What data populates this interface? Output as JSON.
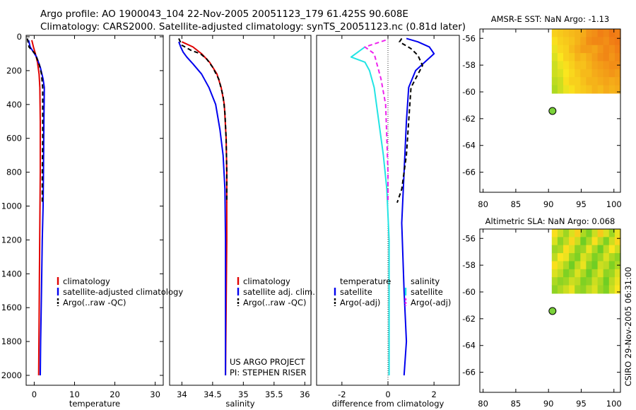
{
  "header": {
    "line1": "Argo profile: AO 1900043_104 22-Nov-2005 20051123_179 61.425S 90.608E",
    "line2": "Climatology: CARS2000. Satellite-adjusted climatology: synTS_20051123.nc (0.81d later)"
  },
  "side_label": "CSIRO 29-Nov-2005 06:31:00",
  "colors": {
    "red": "#e00000",
    "blue": "#0000ee",
    "cyan": "#22e4e4",
    "magenta": "#ee22ee",
    "black": "#000000"
  },
  "chart_data": [
    {
      "type": "line",
      "id": "temperature",
      "xlabel": "temperature",
      "ylabel": "",
      "xlim": [
        -2,
        32
      ],
      "ylim": [
        2050,
        0
      ],
      "xticks": [
        0,
        10,
        20,
        30
      ],
      "yticks": [
        0,
        200,
        400,
        600,
        800,
        1000,
        1200,
        1400,
        1600,
        1800,
        2000
      ],
      "legend": [
        "climatology",
        "satellite-adjusted climatology",
        "Argo(..raw -QC)"
      ],
      "legend_position": "lower-center",
      "series": [
        {
          "name": "climatology",
          "color": "red",
          "dash": false,
          "points": [
            [
              -0.6,
              20
            ],
            [
              -0.2,
              60
            ],
            [
              0.3,
              100
            ],
            [
              0.8,
              150
            ],
            [
              1.2,
              220
            ],
            [
              1.4,
              300
            ],
            [
              1.5,
              500
            ],
            [
              1.5,
              800
            ],
            [
              1.4,
              1100
            ],
            [
              1.3,
              1400
            ],
            [
              1.2,
              1700
            ],
            [
              1.1,
              2000
            ]
          ]
        },
        {
          "name": "satellite-adjusted climatology",
          "color": "blue",
          "dash": false,
          "points": [
            [
              -1.4,
              20
            ],
            [
              -1.0,
              60
            ],
            [
              0.6,
              120
            ],
            [
              1.5,
              180
            ],
            [
              2.2,
              250
            ],
            [
              2.5,
              300
            ],
            [
              2.4,
              500
            ],
            [
              2.3,
              800
            ],
            [
              2.2,
              1000
            ],
            [
              2.0,
              1200
            ],
            [
              1.8,
              1500
            ],
            [
              1.6,
              1800
            ],
            [
              1.5,
              2000
            ]
          ]
        },
        {
          "name": "Argo(..raw -QC)",
          "color": "black",
          "dash": true,
          "points": [
            [
              -1.7,
              10
            ],
            [
              -1.3,
              60
            ],
            [
              0.2,
              100
            ],
            [
              1.2,
              160
            ],
            [
              1.8,
              220
            ],
            [
              2.1,
              300
            ],
            [
              2.1,
              450
            ],
            [
              2.1,
              600
            ],
            [
              2.0,
              800
            ],
            [
              2.0,
              980
            ]
          ]
        }
      ]
    },
    {
      "type": "line",
      "id": "salinity",
      "xlabel": "salinity",
      "ylabel": "",
      "xlim": [
        33.8,
        36.1
      ],
      "ylim": [
        2050,
        0
      ],
      "xticks": [
        34,
        34.5,
        35,
        35.5,
        36
      ],
      "yticks": [],
      "legend": [
        "climatology",
        "satellite adj. clim.",
        "Argo(..raw -QC)"
      ],
      "legend_position": "lower-center",
      "annotations": [
        "US ARGO PROJECT",
        "PI: STEPHEN RISER"
      ],
      "series": [
        {
          "name": "climatology",
          "color": "red",
          "dash": false,
          "points": [
            [
              34.0,
              30
            ],
            [
              34.18,
              60
            ],
            [
              34.32,
              100
            ],
            [
              34.45,
              150
            ],
            [
              34.57,
              220
            ],
            [
              34.64,
              300
            ],
            [
              34.69,
              400
            ],
            [
              34.72,
              600
            ],
            [
              34.73,
              800
            ],
            [
              34.73,
              1200
            ],
            [
              34.72,
              1600
            ],
            [
              34.71,
              2000
            ]
          ]
        },
        {
          "name": "satellite adj. clim.",
          "color": "blue",
          "dash": false,
          "points": [
            [
              33.95,
              30
            ],
            [
              33.98,
              60
            ],
            [
              34.02,
              90
            ],
            [
              34.08,
              120
            ],
            [
              34.18,
              160
            ],
            [
              34.32,
              220
            ],
            [
              34.44,
              300
            ],
            [
              34.55,
              400
            ],
            [
              34.62,
              550
            ],
            [
              34.67,
              700
            ],
            [
              34.7,
              900
            ],
            [
              34.71,
              1200
            ],
            [
              34.71,
              1600
            ],
            [
              34.71,
              2000
            ]
          ]
        },
        {
          "name": "Argo(..raw -QC)",
          "color": "black",
          "dash": true,
          "points": [
            [
              33.95,
              10
            ],
            [
              34.0,
              50
            ],
            [
              34.15,
              80
            ],
            [
              34.3,
              100
            ],
            [
              34.4,
              130
            ],
            [
              34.5,
              180
            ],
            [
              34.6,
              250
            ],
            [
              34.67,
              350
            ],
            [
              34.7,
              450
            ],
            [
              34.72,
              600
            ],
            [
              34.73,
              800
            ],
            [
              34.73,
              980
            ]
          ]
        }
      ]
    },
    {
      "type": "line",
      "id": "difference",
      "xlabel": "difference from climatology",
      "ylabel": "",
      "xlim": [
        -3.1,
        3.1
      ],
      "ylim": [
        2050,
        0
      ],
      "xticks": [
        -2,
        0,
        2
      ],
      "yticks": [],
      "legend_headers": [
        "temperature",
        "salinity"
      ],
      "legend": [
        "satellite",
        "Argo(-adj)",
        "satellite",
        "Argo(-adj)"
      ],
      "legend_position": "lower-center",
      "series": [
        {
          "name": "temperature satellite",
          "color": "blue",
          "dash": false,
          "points": [
            [
              0.8,
              10
            ],
            [
              1.3,
              30
            ],
            [
              1.8,
              60
            ],
            [
              2.0,
              100
            ],
            [
              1.6,
              150
            ],
            [
              1.2,
              200
            ],
            [
              0.9,
              300
            ],
            [
              0.8,
              500
            ],
            [
              0.7,
              800
            ],
            [
              0.6,
              1100
            ],
            [
              0.7,
              1500
            ],
            [
              0.8,
              1800
            ],
            [
              0.7,
              2000
            ]
          ]
        },
        {
          "name": "temperature Argo(-adj)",
          "color": "black",
          "dash": true,
          "points": [
            [
              0.6,
              10
            ],
            [
              0.5,
              30
            ],
            [
              1.0,
              70
            ],
            [
              1.3,
              110
            ],
            [
              1.5,
              170
            ],
            [
              1.0,
              300
            ],
            [
              0.9,
              500
            ],
            [
              0.8,
              700
            ],
            [
              0.6,
              900
            ],
            [
              0.4,
              980
            ]
          ]
        },
        {
          "name": "salinity satellite",
          "color": "cyan",
          "dash": false,
          "points": [
            [
              -1.0,
              60
            ],
            [
              -1.6,
              120
            ],
            [
              -1.0,
              150
            ],
            [
              -0.8,
              200
            ],
            [
              -0.6,
              300
            ],
            [
              -0.4,
              500
            ],
            [
              -0.2,
              700
            ],
            [
              -0.05,
              900
            ],
            [
              0.05,
              1200
            ],
            [
              0.05,
              1600
            ],
            [
              0.05,
              2000
            ]
          ]
        },
        {
          "name": "salinity Argo(-adj)",
          "color": "magenta",
          "dash": true,
          "points": [
            [
              -0.1,
              20
            ],
            [
              -1.0,
              60
            ],
            [
              -0.6,
              100
            ],
            [
              -0.5,
              150
            ],
            [
              -0.3,
              250
            ],
            [
              -0.1,
              400
            ],
            [
              -0.05,
              600
            ],
            [
              0.0,
              800
            ],
            [
              0.0,
              980
            ]
          ]
        }
      ]
    },
    {
      "type": "heatmap",
      "id": "sst",
      "title": "AMSR-E SST: NaN Argo: -1.13",
      "xlim": [
        79.5,
        101
      ],
      "ylim": [
        -67.5,
        -55.3
      ],
      "xticks": [
        80,
        85,
        90,
        95,
        100
      ],
      "yticks": [
        -56,
        -58,
        -60,
        -62,
        -64,
        -66
      ],
      "grid_extent": {
        "lon": [
          90.5,
          101
        ],
        "lat": [
          -60.1,
          -55.3
        ]
      },
      "grid_range": [
        -1.5,
        1.5
      ],
      "grid": [
        [
          0.3,
          0.4,
          0.5,
          0.6,
          0.7,
          0.8,
          1.1,
          1.2,
          1.4,
          1.3,
          1.5,
          1.4
        ],
        [
          0.1,
          0.3,
          0.4,
          0.5,
          0.7,
          0.9,
          1.2,
          1.3,
          1.3,
          1.2,
          1.4,
          1.5
        ],
        [
          -0.1,
          0.2,
          0.3,
          0.6,
          0.8,
          1.0,
          1.0,
          0.9,
          1.1,
          1.3,
          1.2,
          1.4
        ],
        [
          -0.2,
          0.0,
          0.3,
          0.4,
          0.7,
          0.6,
          0.8,
          1.0,
          1.2,
          1.3,
          1.1,
          1.3
        ],
        [
          -0.3,
          -0.1,
          0.1,
          0.3,
          0.5,
          0.5,
          0.7,
          0.9,
          1.0,
          1.1,
          1.2,
          1.2
        ],
        [
          -0.3,
          -0.2,
          0.0,
          0.2,
          0.4,
          0.6,
          0.6,
          0.8,
          0.9,
          1.0,
          1.1,
          1.0
        ],
        [
          -0.4,
          -0.3,
          0.1,
          0.3,
          0.3,
          0.5,
          0.7,
          0.7,
          0.8,
          0.9,
          0.8,
          0.9
        ],
        [
          -0.5,
          -0.3,
          -0.1,
          0.1,
          0.3,
          0.4,
          0.5,
          0.7,
          0.6,
          0.8,
          0.7,
          0.8
        ]
      ],
      "marker": {
        "lon": 90.608,
        "lat": -61.425
      }
    },
    {
      "type": "heatmap",
      "id": "sla",
      "title": "Altimetric SLA: NaN Argo: 0.068",
      "xlim": [
        79.5,
        101
      ],
      "ylim": [
        -67.5,
        -55.3
      ],
      "xticks": [
        80,
        85,
        90,
        95,
        100
      ],
      "yticks": [
        -56,
        -58,
        -60,
        -62,
        -64,
        -66
      ],
      "grid_extent": {
        "lon": [
          90.5,
          101
        ],
        "lat": [
          -60.1,
          -55.3
        ]
      },
      "grid_range": [
        -1.5,
        1.5
      ],
      "grid": [
        [
          0.1,
          -0.3,
          -0.6,
          -0.2,
          0.3,
          -0.5,
          -0.8,
          -0.3,
          0.4,
          -0.2,
          -0.6,
          -0.1
        ],
        [
          -0.2,
          -0.7,
          -0.4,
          0.2,
          -0.3,
          -0.9,
          -0.5,
          0.1,
          -0.4,
          -0.8,
          -0.3,
          0.2
        ],
        [
          -0.6,
          -0.5,
          0.1,
          -0.2,
          -0.7,
          -0.6,
          -0.1,
          -0.5,
          -0.9,
          -0.4,
          0.0,
          -0.3
        ],
        [
          -0.4,
          0.0,
          -0.1,
          -0.6,
          -0.8,
          -0.2,
          -0.4,
          -0.8,
          -0.6,
          -0.2,
          -0.5,
          -0.7
        ],
        [
          0.1,
          -0.2,
          -0.5,
          -0.9,
          -0.4,
          -0.1,
          -0.7,
          -0.9,
          -0.3,
          -0.4,
          -0.8,
          -0.5
        ],
        [
          -0.2,
          -0.4,
          -0.8,
          -0.6,
          -0.2,
          -0.5,
          -0.9,
          -0.5,
          -0.2,
          -0.7,
          -0.6,
          -0.2
        ],
        [
          -0.5,
          -0.7,
          -0.6,
          -0.3,
          -0.4,
          -0.8,
          -0.7,
          -0.3,
          -0.5,
          -0.9,
          -0.4,
          -0.1
        ],
        [
          -0.7,
          -0.5,
          -0.3,
          -0.1,
          -0.6,
          -0.7,
          -0.4,
          -0.2,
          -0.6,
          -0.8,
          -0.3,
          0.0
        ]
      ],
      "marker": {
        "lon": 90.608,
        "lat": -61.425
      }
    }
  ]
}
